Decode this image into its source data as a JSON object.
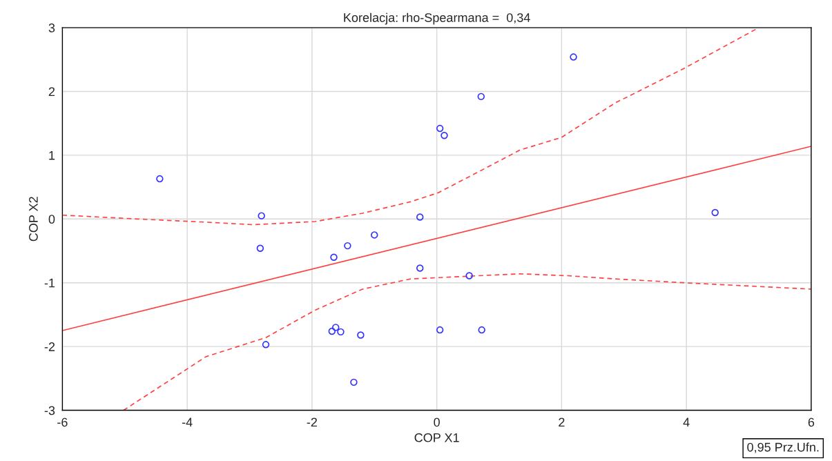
{
  "chart_data": {
    "type": "scatter",
    "title": "Korelacja: rho-Spearmana =  0,34",
    "xlabel": "COP X1",
    "ylabel": "COP X2",
    "xlim": [
      -6,
      6
    ],
    "ylim": [
      -3,
      3
    ],
    "xticks": [
      -6,
      -4,
      -2,
      0,
      2,
      4,
      6
    ],
    "yticks": [
      -3,
      -2,
      -1,
      0,
      1,
      2,
      3
    ],
    "grid": true,
    "annotations": [
      "0,95 Prz.Ufn."
    ],
    "series": [
      {
        "color": "#3333ff",
        "marker": "circle",
        "x": [
          -4.44,
          -2.81,
          -2.83,
          -2.74,
          -1.65,
          -1.43,
          -1.0,
          -0.27,
          -0.27,
          0.05,
          0.12,
          0.71,
          2.19,
          4.46,
          0.52,
          -1.62,
          -1.68,
          -1.54,
          -1.22,
          -1.33,
          0.05,
          0.72
        ],
        "values": [
          0.63,
          0.05,
          -0.46,
          -1.97,
          -0.6,
          -0.42,
          -0.25,
          0.03,
          -0.77,
          1.42,
          1.31,
          1.92,
          2.54,
          0.1,
          -0.89,
          -1.7,
          -1.76,
          -1.77,
          -1.82,
          -2.56,
          -1.74,
          -1.74
        ]
      },
      {
        "type": "line",
        "color": "#ff4040",
        "line_style": "solid",
        "x": [
          -6,
          6
        ],
        "values": [
          -1.75,
          1.14
        ]
      },
      {
        "type": "line",
        "color": "#ff4040",
        "line_style": "dashed",
        "x": [
          -6,
          -4.8,
          -3.7,
          -2.94,
          -1.95,
          -1.19,
          -0.42,
          0.02,
          0.67,
          1.33,
          2.0,
          2.86,
          3.96,
          5.16
        ],
        "values": [
          0.06,
          0.0,
          -0.05,
          -0.09,
          -0.04,
          0.09,
          0.27,
          0.41,
          0.74,
          1.08,
          1.28,
          1.82,
          2.36,
          3.0
        ]
      },
      {
        "type": "line",
        "color": "#ff4040",
        "line_style": "dashed",
        "x": [
          -5.02,
          -4.25,
          -3.7,
          -2.74,
          -1.95,
          -1.19,
          -0.42,
          0.67,
          1.33,
          2.1,
          2.86,
          3.96,
          6
        ],
        "values": [
          -3,
          -2.51,
          -2.16,
          -1.86,
          -1.43,
          -1.1,
          -0.94,
          -0.89,
          -0.86,
          -0.89,
          -0.94,
          -1.0,
          -1.1
        ]
      }
    ]
  }
}
